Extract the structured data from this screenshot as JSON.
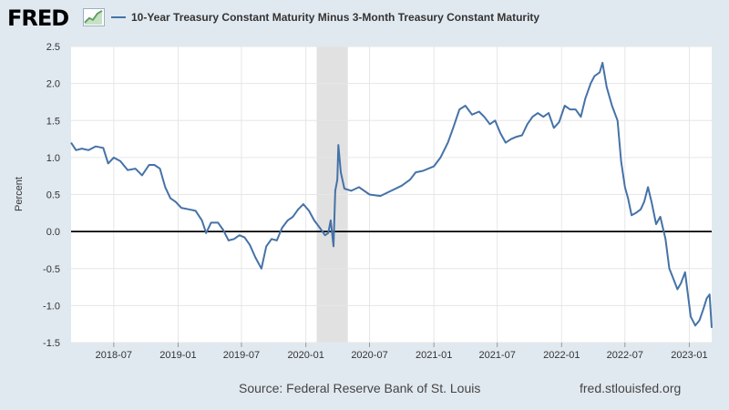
{
  "header": {
    "logo_text": "FRED",
    "series_title": "10-Year Treasury Constant Maturity Minus 3-Month Treasury Constant Maturity"
  },
  "footer": {
    "source": "Source: Federal Reserve Bank of St. Louis",
    "url": "fred.stlouisfed.org"
  },
  "colors": {
    "line": "#4572a7",
    "recession": "#e1e1e1",
    "zero_line": "#000000",
    "background": "#e1e9f0",
    "plot_bg": "#ffffff"
  },
  "chart_data": {
    "type": "line",
    "title": "10-Year Treasury Constant Maturity Minus 3-Month Treasury Constant Maturity",
    "ylabel": "Percent",
    "xlabel": "",
    "ylim": [
      -1.5,
      2.5
    ],
    "xlim": [
      "2018-03-01",
      "2023-03-06"
    ],
    "yticks": [
      "-1.5",
      "-1.0",
      "-0.5",
      "0.0",
      "0.5",
      "1.0",
      "1.5",
      "2.0",
      "2.5"
    ],
    "xticks": [
      "2018-07",
      "2019-01",
      "2019-07",
      "2020-01",
      "2020-07",
      "2021-01",
      "2021-07",
      "2022-01",
      "2022-07",
      "2023-01"
    ],
    "grid": true,
    "legend": "top",
    "recession_shading": [
      [
        "2020-02-01",
        "2020-04-30"
      ]
    ],
    "series": [
      {
        "name": "10-Year Treasury Constant Maturity Minus 3-Month Treasury Constant Maturity",
        "points": [
          [
            "2018-03-01",
            1.2
          ],
          [
            "2018-03-15",
            1.1
          ],
          [
            "2018-04-01",
            1.12
          ],
          [
            "2018-04-20",
            1.1
          ],
          [
            "2018-05-10",
            1.15
          ],
          [
            "2018-06-01",
            1.13
          ],
          [
            "2018-06-15",
            0.92
          ],
          [
            "2018-07-01",
            1.0
          ],
          [
            "2018-07-20",
            0.95
          ],
          [
            "2018-08-10",
            0.83
          ],
          [
            "2018-09-01",
            0.85
          ],
          [
            "2018-09-20",
            0.76
          ],
          [
            "2018-10-10",
            0.9
          ],
          [
            "2018-10-25",
            0.9
          ],
          [
            "2018-11-10",
            0.85
          ],
          [
            "2018-11-25",
            0.6
          ],
          [
            "2018-12-10",
            0.45
          ],
          [
            "2018-12-25",
            0.4
          ],
          [
            "2019-01-10",
            0.32
          ],
          [
            "2019-02-01",
            0.3
          ],
          [
            "2019-02-20",
            0.28
          ],
          [
            "2019-03-10",
            0.15
          ],
          [
            "2019-03-22",
            -0.02
          ],
          [
            "2019-04-05",
            0.12
          ],
          [
            "2019-04-25",
            0.12
          ],
          [
            "2019-05-10",
            0.02
          ],
          [
            "2019-05-25",
            -0.12
          ],
          [
            "2019-06-10",
            -0.1
          ],
          [
            "2019-06-25",
            -0.05
          ],
          [
            "2019-07-10",
            -0.08
          ],
          [
            "2019-07-25",
            -0.18
          ],
          [
            "2019-08-10",
            -0.35
          ],
          [
            "2019-08-27",
            -0.5
          ],
          [
            "2019-09-10",
            -0.2
          ],
          [
            "2019-09-25",
            -0.1
          ],
          [
            "2019-10-10",
            -0.12
          ],
          [
            "2019-10-25",
            0.05
          ],
          [
            "2019-11-10",
            0.15
          ],
          [
            "2019-11-25",
            0.2
          ],
          [
            "2019-12-10",
            0.3
          ],
          [
            "2019-12-25",
            0.37
          ],
          [
            "2020-01-10",
            0.28
          ],
          [
            "2020-01-25",
            0.15
          ],
          [
            "2020-02-10",
            0.05
          ],
          [
            "2020-02-25",
            -0.05
          ],
          [
            "2020-03-05",
            -0.02
          ],
          [
            "2020-03-12",
            0.15
          ],
          [
            "2020-03-20",
            -0.2
          ],
          [
            "2020-03-25",
            0.55
          ],
          [
            "2020-03-31",
            0.7
          ],
          [
            "2020-04-03",
            1.17
          ],
          [
            "2020-04-10",
            0.8
          ],
          [
            "2020-04-20",
            0.58
          ],
          [
            "2020-05-10",
            0.55
          ],
          [
            "2020-06-01",
            0.6
          ],
          [
            "2020-07-01",
            0.5
          ],
          [
            "2020-08-01",
            0.48
          ],
          [
            "2020-09-01",
            0.55
          ],
          [
            "2020-10-01",
            0.62
          ],
          [
            "2020-10-25",
            0.7
          ],
          [
            "2020-11-10",
            0.8
          ],
          [
            "2020-12-01",
            0.82
          ],
          [
            "2021-01-01",
            0.88
          ],
          [
            "2021-01-20",
            1.0
          ],
          [
            "2021-02-10",
            1.2
          ],
          [
            "2021-02-25",
            1.4
          ],
          [
            "2021-03-15",
            1.65
          ],
          [
            "2021-04-01",
            1.7
          ],
          [
            "2021-04-20",
            1.58
          ],
          [
            "2021-05-10",
            1.62
          ],
          [
            "2021-05-25",
            1.55
          ],
          [
            "2021-06-10",
            1.45
          ],
          [
            "2021-06-25",
            1.5
          ],
          [
            "2021-07-10",
            1.33
          ],
          [
            "2021-07-25",
            1.2
          ],
          [
            "2021-08-10",
            1.25
          ],
          [
            "2021-08-25",
            1.28
          ],
          [
            "2021-09-10",
            1.3
          ],
          [
            "2021-09-25",
            1.45
          ],
          [
            "2021-10-10",
            1.55
          ],
          [
            "2021-10-25",
            1.6
          ],
          [
            "2021-11-10",
            1.55
          ],
          [
            "2021-11-25",
            1.6
          ],
          [
            "2021-12-10",
            1.4
          ],
          [
            "2021-12-25",
            1.48
          ],
          [
            "2022-01-10",
            1.7
          ],
          [
            "2022-01-25",
            1.65
          ],
          [
            "2022-02-10",
            1.65
          ],
          [
            "2022-02-25",
            1.55
          ],
          [
            "2022-03-10",
            1.8
          ],
          [
            "2022-03-25",
            2.0
          ],
          [
            "2022-04-05",
            2.1
          ],
          [
            "2022-04-20",
            2.15
          ],
          [
            "2022-04-28",
            2.28
          ],
          [
            "2022-05-10",
            1.95
          ],
          [
            "2022-05-25",
            1.7
          ],
          [
            "2022-06-10",
            1.5
          ],
          [
            "2022-06-20",
            0.95
          ],
          [
            "2022-07-01",
            0.6
          ],
          [
            "2022-07-10",
            0.45
          ],
          [
            "2022-07-20",
            0.22
          ],
          [
            "2022-08-01",
            0.25
          ],
          [
            "2022-08-15",
            0.3
          ],
          [
            "2022-08-25",
            0.4
          ],
          [
            "2022-09-05",
            0.6
          ],
          [
            "2022-09-15",
            0.4
          ],
          [
            "2022-09-28",
            0.1
          ],
          [
            "2022-10-10",
            0.2
          ],
          [
            "2022-10-25",
            -0.1
          ],
          [
            "2022-11-05",
            -0.5
          ],
          [
            "2022-11-15",
            -0.62
          ],
          [
            "2022-11-28",
            -0.78
          ],
          [
            "2022-12-08",
            -0.7
          ],
          [
            "2022-12-20",
            -0.55
          ],
          [
            "2023-01-05",
            -1.15
          ],
          [
            "2023-01-18",
            -1.27
          ],
          [
            "2023-01-30",
            -1.2
          ],
          [
            "2023-02-10",
            -1.05
          ],
          [
            "2023-02-20",
            -0.9
          ],
          [
            "2023-02-28",
            -0.85
          ],
          [
            "2023-03-06",
            -1.3
          ]
        ]
      }
    ]
  }
}
